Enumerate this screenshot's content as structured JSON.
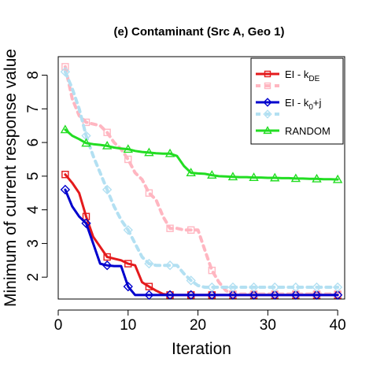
{
  "chart_data": {
    "type": "line",
    "title": "(e) Contaminant (Src A, Geo 1)",
    "xlabel": "Iteration",
    "ylabel": "Minimum of current response value",
    "xlim": [
      0,
      41
    ],
    "ylim": [
      1.35,
      8.55
    ],
    "xticks": [
      0,
      10,
      20,
      30,
      40
    ],
    "yticks": [
      2,
      3,
      4,
      5,
      6,
      7,
      8
    ],
    "grid": false,
    "legend_position": "top-right",
    "series": [
      {
        "name": "EI - k_DE",
        "legend_main": "EI - k",
        "legend_sub": "DE",
        "color": "#e41a1c",
        "style": "solid",
        "width": 3,
        "marker": "square",
        "points": [
          [
            1,
            5.05
          ],
          [
            2,
            4.8
          ],
          [
            3,
            4.5
          ],
          [
            4,
            3.8
          ],
          [
            5,
            3.2
          ],
          [
            6,
            2.9
          ],
          [
            7,
            2.6
          ],
          [
            8,
            2.55
          ],
          [
            9,
            2.5
          ],
          [
            10,
            2.4
          ],
          [
            11,
            2.35
          ],
          [
            12,
            1.85
          ],
          [
            13,
            1.72
          ],
          [
            14,
            1.6
          ],
          [
            15,
            1.5
          ],
          [
            16,
            1.47
          ],
          [
            17,
            1.47
          ],
          [
            18,
            1.47
          ],
          [
            19,
            1.47
          ],
          [
            20,
            1.47
          ],
          [
            21,
            1.47
          ],
          [
            22,
            1.47
          ],
          [
            23,
            1.47
          ],
          [
            24,
            1.47
          ],
          [
            25,
            1.47
          ],
          [
            26,
            1.47
          ],
          [
            27,
            1.47
          ],
          [
            28,
            1.47
          ],
          [
            29,
            1.47
          ],
          [
            30,
            1.47
          ],
          [
            31,
            1.47
          ],
          [
            32,
            1.47
          ],
          [
            33,
            1.47
          ],
          [
            34,
            1.47
          ],
          [
            35,
            1.47
          ],
          [
            36,
            1.47
          ],
          [
            37,
            1.47
          ],
          [
            38,
            1.47
          ],
          [
            39,
            1.47
          ],
          [
            40,
            1.47
          ]
        ],
        "marker_points": [
          [
            1,
            5.05
          ],
          [
            4,
            3.8
          ],
          [
            7,
            2.6
          ],
          [
            10,
            2.4
          ],
          [
            13,
            1.72
          ],
          [
            16,
            1.47
          ],
          [
            19,
            1.47
          ],
          [
            22,
            1.47
          ],
          [
            25,
            1.47
          ],
          [
            28,
            1.47
          ],
          [
            31,
            1.47
          ],
          [
            34,
            1.47
          ],
          [
            37,
            1.47
          ],
          [
            40,
            1.47
          ]
        ]
      },
      {
        "name": "",
        "color": "#ffb6c1",
        "style": "dashed",
        "width": 4,
        "marker": "square",
        "points": [
          [
            1,
            8.25
          ],
          [
            2,
            7.3
          ],
          [
            3,
            6.8
          ],
          [
            4,
            6.6
          ],
          [
            5,
            6.55
          ],
          [
            6,
            6.5
          ],
          [
            7,
            6.3
          ],
          [
            8,
            6.0
          ],
          [
            9,
            5.8
          ],
          [
            10,
            5.5
          ],
          [
            11,
            5.1
          ],
          [
            12,
            4.9
          ],
          [
            13,
            4.5
          ],
          [
            14,
            4.3
          ],
          [
            15,
            3.8
          ],
          [
            16,
            3.45
          ],
          [
            17,
            3.45
          ],
          [
            18,
            3.4
          ],
          [
            19,
            3.4
          ],
          [
            20,
            3.4
          ],
          [
            21,
            2.8
          ],
          [
            22,
            2.2
          ],
          [
            23,
            1.85
          ],
          [
            24,
            1.6
          ],
          [
            25,
            1.5
          ],
          [
            26,
            1.5
          ],
          [
            27,
            1.5
          ],
          [
            28,
            1.5
          ],
          [
            29,
            1.5
          ],
          [
            30,
            1.5
          ],
          [
            31,
            1.5
          ],
          [
            32,
            1.5
          ],
          [
            33,
            1.5
          ],
          [
            34,
            1.5
          ],
          [
            35,
            1.5
          ],
          [
            36,
            1.5
          ],
          [
            37,
            1.5
          ],
          [
            38,
            1.5
          ],
          [
            39,
            1.5
          ],
          [
            40,
            1.5
          ]
        ],
        "marker_points": [
          [
            1,
            8.25
          ],
          [
            4,
            6.6
          ],
          [
            7,
            6.3
          ],
          [
            10,
            5.5
          ],
          [
            13,
            4.5
          ],
          [
            16,
            3.45
          ],
          [
            19,
            3.4
          ],
          [
            22,
            2.2
          ],
          [
            25,
            1.5
          ],
          [
            28,
            1.5
          ],
          [
            31,
            1.5
          ],
          [
            34,
            1.5
          ],
          [
            37,
            1.5
          ],
          [
            40,
            1.5
          ]
        ]
      },
      {
        "name": "EI - k_0+j",
        "legend_main": "EI - k",
        "legend_sub": "0",
        "legend_tail": "+j",
        "color": "#0000cd",
        "style": "solid",
        "width": 3,
        "marker": "diamond",
        "points": [
          [
            1,
            4.6
          ],
          [
            2,
            4.1
          ],
          [
            3,
            3.8
          ],
          [
            4,
            3.6
          ],
          [
            5,
            3.0
          ],
          [
            6,
            2.4
          ],
          [
            7,
            2.35
          ],
          [
            8,
            2.33
          ],
          [
            9,
            2.33
          ],
          [
            10,
            1.72
          ],
          [
            11,
            1.47
          ],
          [
            12,
            1.47
          ],
          [
            13,
            1.47
          ],
          [
            14,
            1.47
          ],
          [
            15,
            1.47
          ],
          [
            16,
            1.47
          ],
          [
            17,
            1.47
          ],
          [
            18,
            1.47
          ],
          [
            19,
            1.47
          ],
          [
            20,
            1.47
          ],
          [
            21,
            1.47
          ],
          [
            22,
            1.47
          ],
          [
            23,
            1.47
          ],
          [
            24,
            1.47
          ],
          [
            25,
            1.47
          ],
          [
            26,
            1.47
          ],
          [
            27,
            1.47
          ],
          [
            28,
            1.47
          ],
          [
            29,
            1.47
          ],
          [
            30,
            1.47
          ],
          [
            31,
            1.47
          ],
          [
            32,
            1.47
          ],
          [
            33,
            1.47
          ],
          [
            34,
            1.47
          ],
          [
            35,
            1.47
          ],
          [
            36,
            1.47
          ],
          [
            37,
            1.47
          ],
          [
            38,
            1.47
          ],
          [
            39,
            1.47
          ],
          [
            40,
            1.47
          ]
        ],
        "marker_points": [
          [
            1,
            4.6
          ],
          [
            4,
            3.6
          ],
          [
            7,
            2.35
          ],
          [
            10,
            1.72
          ],
          [
            13,
            1.47
          ],
          [
            16,
            1.47
          ],
          [
            19,
            1.47
          ],
          [
            22,
            1.47
          ],
          [
            25,
            1.47
          ],
          [
            28,
            1.47
          ],
          [
            31,
            1.47
          ],
          [
            34,
            1.47
          ],
          [
            37,
            1.47
          ],
          [
            40,
            1.47
          ]
        ]
      },
      {
        "name": "",
        "color": "#b3e0f2",
        "style": "dashed",
        "width": 4,
        "marker": "diamond",
        "points": [
          [
            1,
            8.1
          ],
          [
            2,
            7.6
          ],
          [
            3,
            7.0
          ],
          [
            4,
            6.2
          ],
          [
            5,
            5.6
          ],
          [
            6,
            5.1
          ],
          [
            7,
            4.6
          ],
          [
            8,
            4.1
          ],
          [
            9,
            3.7
          ],
          [
            10,
            3.4
          ],
          [
            11,
            3.0
          ],
          [
            12,
            2.6
          ],
          [
            13,
            2.4
          ],
          [
            14,
            2.35
          ],
          [
            15,
            2.35
          ],
          [
            16,
            2.35
          ],
          [
            17,
            2.35
          ],
          [
            18,
            2.1
          ],
          [
            19,
            1.9
          ],
          [
            20,
            1.75
          ],
          [
            21,
            1.7
          ],
          [
            22,
            1.7
          ],
          [
            23,
            1.7
          ],
          [
            24,
            1.7
          ],
          [
            25,
            1.7
          ],
          [
            26,
            1.7
          ],
          [
            27,
            1.7
          ],
          [
            28,
            1.7
          ],
          [
            29,
            1.7
          ],
          [
            30,
            1.7
          ],
          [
            31,
            1.7
          ],
          [
            32,
            1.7
          ],
          [
            33,
            1.7
          ],
          [
            34,
            1.7
          ],
          [
            35,
            1.7
          ],
          [
            36,
            1.7
          ],
          [
            37,
            1.7
          ],
          [
            38,
            1.7
          ],
          [
            39,
            1.7
          ],
          [
            40,
            1.7
          ]
        ],
        "marker_points": [
          [
            1,
            8.1
          ],
          [
            4,
            6.2
          ],
          [
            7,
            4.6
          ],
          [
            10,
            3.4
          ],
          [
            13,
            2.4
          ],
          [
            16,
            2.35
          ],
          [
            19,
            1.9
          ],
          [
            22,
            1.7
          ],
          [
            25,
            1.7
          ],
          [
            28,
            1.7
          ],
          [
            31,
            1.7
          ],
          [
            34,
            1.7
          ],
          [
            37,
            1.7
          ],
          [
            40,
            1.7
          ]
        ]
      },
      {
        "name": "RANDOM",
        "legend_main": "RANDOM",
        "color": "#22dd22",
        "style": "solid",
        "width": 3,
        "marker": "triangle",
        "points": [
          [
            1,
            6.38
          ],
          [
            2,
            6.2
          ],
          [
            3,
            6.1
          ],
          [
            4,
            5.98
          ],
          [
            5,
            5.95
          ],
          [
            6,
            5.93
          ],
          [
            7,
            5.9
          ],
          [
            8,
            5.85
          ],
          [
            9,
            5.82
          ],
          [
            10,
            5.8
          ],
          [
            11,
            5.75
          ],
          [
            12,
            5.72
          ],
          [
            13,
            5.7
          ],
          [
            14,
            5.68
          ],
          [
            15,
            5.67
          ],
          [
            16,
            5.67
          ],
          [
            17,
            5.6
          ],
          [
            18,
            5.3
          ],
          [
            19,
            5.1
          ],
          [
            20,
            5.08
          ],
          [
            21,
            5.07
          ],
          [
            22,
            5.03
          ],
          [
            23,
            5.0
          ],
          [
            24,
            4.99
          ],
          [
            25,
            4.98
          ],
          [
            26,
            4.97
          ],
          [
            27,
            4.97
          ],
          [
            28,
            4.96
          ],
          [
            29,
            4.96
          ],
          [
            30,
            4.95
          ],
          [
            31,
            4.95
          ],
          [
            32,
            4.94
          ],
          [
            33,
            4.94
          ],
          [
            34,
            4.93
          ],
          [
            35,
            4.93
          ],
          [
            36,
            4.92
          ],
          [
            37,
            4.92
          ],
          [
            38,
            4.91
          ],
          [
            39,
            4.91
          ],
          [
            40,
            4.9
          ]
        ],
        "marker_points": [
          [
            1,
            6.38
          ],
          [
            4,
            5.98
          ],
          [
            7,
            5.9
          ],
          [
            10,
            5.8
          ],
          [
            13,
            5.7
          ],
          [
            16,
            5.67
          ],
          [
            19,
            5.1
          ],
          [
            22,
            5.03
          ],
          [
            25,
            4.98
          ],
          [
            28,
            4.96
          ],
          [
            31,
            4.95
          ],
          [
            34,
            4.93
          ],
          [
            37,
            4.92
          ],
          [
            40,
            4.9
          ]
        ]
      }
    ]
  }
}
